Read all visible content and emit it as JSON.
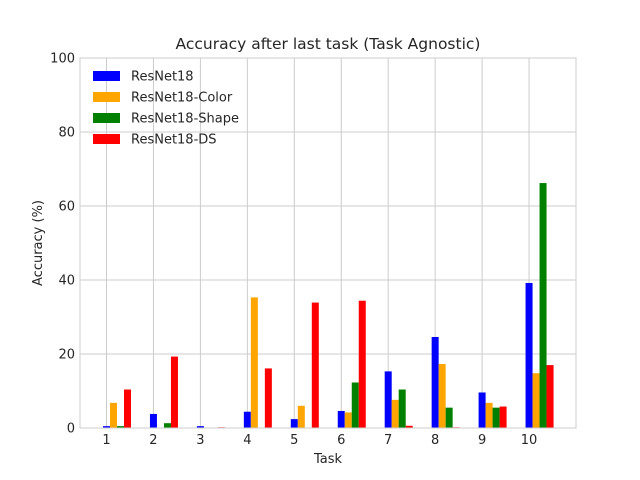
{
  "chart_data": {
    "type": "bar",
    "title": "Accuracy after last task (Task Agnostic)",
    "xlabel": "Task",
    "ylabel": "Accuracy (%)",
    "categories": [
      "1",
      "2",
      "3",
      "4",
      "5",
      "6",
      "7",
      "8",
      "9",
      "10"
    ],
    "ylim": [
      0,
      100
    ],
    "yticks": [
      0,
      20,
      40,
      60,
      80,
      100
    ],
    "grid": true,
    "legend": "top-left",
    "series": [
      {
        "name": "ResNet18",
        "color": "#0000ff",
        "values": [
          0.5,
          3.8,
          0.5,
          4.4,
          2.4,
          4.6,
          15.3,
          24.6,
          9.6,
          39.2
        ]
      },
      {
        "name": "ResNet18-Color",
        "color": "#ffa500",
        "values": [
          6.8,
          0.0,
          0.0,
          35.3,
          6.0,
          4.2,
          7.6,
          17.3,
          6.8,
          14.8
        ]
      },
      {
        "name": "ResNet18-Shape",
        "color": "#008000",
        "values": [
          0.5,
          1.3,
          0.0,
          0.0,
          0.0,
          12.3,
          10.4,
          5.5,
          5.5,
          66.2
        ]
      },
      {
        "name": "ResNet18-DS",
        "color": "#ff0000",
        "values": [
          10.4,
          19.3,
          0.2,
          16.1,
          33.9,
          34.4,
          0.6,
          0.2,
          5.8,
          17.0
        ]
      }
    ]
  }
}
